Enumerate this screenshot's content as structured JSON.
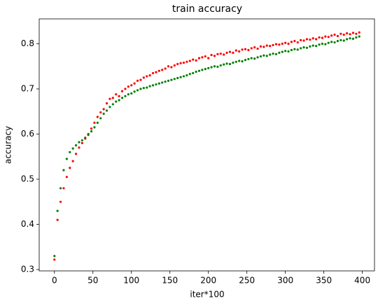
{
  "chart_data": {
    "type": "scatter",
    "title": "train accuracy",
    "x_label": "iter*100",
    "y_label": "accuracy",
    "x": [
      0,
      4,
      8,
      12,
      16,
      20,
      24,
      28,
      32,
      36,
      40,
      44,
      48,
      52,
      56,
      60,
      64,
      68,
      72,
      76,
      80,
      84,
      88,
      92,
      96,
      100,
      104,
      108,
      112,
      116,
      120,
      124,
      128,
      132,
      136,
      140,
      144,
      148,
      152,
      156,
      160,
      164,
      168,
      172,
      176,
      180,
      184,
      188,
      192,
      196,
      200,
      204,
      208,
      212,
      216,
      220,
      224,
      228,
      232,
      236,
      240,
      244,
      248,
      252,
      256,
      260,
      264,
      268,
      272,
      276,
      280,
      284,
      288,
      292,
      296,
      300,
      304,
      308,
      312,
      316,
      320,
      324,
      328,
      332,
      336,
      340,
      344,
      348,
      352,
      356,
      360,
      364,
      368,
      372,
      376,
      380,
      384,
      388,
      392,
      396
    ],
    "series": [
      {
        "color": "#ff0000",
        "values": [
          0.322,
          0.41,
          0.45,
          0.48,
          0.505,
          0.525,
          0.54,
          0.556,
          0.57,
          0.58,
          0.59,
          0.6,
          0.612,
          0.625,
          0.638,
          0.648,
          0.655,
          0.668,
          0.678,
          0.68,
          0.688,
          0.684,
          0.695,
          0.7,
          0.705,
          0.708,
          0.712,
          0.718,
          0.72,
          0.725,
          0.728,
          0.73,
          0.735,
          0.737,
          0.74,
          0.742,
          0.745,
          0.75,
          0.748,
          0.752,
          0.755,
          0.757,
          0.758,
          0.76,
          0.762,
          0.765,
          0.763,
          0.768,
          0.77,
          0.772,
          0.768,
          0.775,
          0.773,
          0.777,
          0.778,
          0.776,
          0.78,
          0.782,
          0.78,
          0.785,
          0.783,
          0.787,
          0.788,
          0.786,
          0.79,
          0.792,
          0.789,
          0.794,
          0.793,
          0.796,
          0.795,
          0.797,
          0.799,
          0.798,
          0.8,
          0.802,
          0.8,
          0.804,
          0.806,
          0.803,
          0.808,
          0.807,
          0.81,
          0.809,
          0.812,
          0.81,
          0.814,
          0.813,
          0.816,
          0.815,
          0.818,
          0.82,
          0.817,
          0.822,
          0.82,
          0.823,
          0.821,
          0.824,
          0.822,
          0.825
        ]
      },
      {
        "color": "#008000",
        "values": [
          0.33,
          0.43,
          0.48,
          0.52,
          0.545,
          0.56,
          0.568,
          0.575,
          0.582,
          0.586,
          0.592,
          0.598,
          0.606,
          0.615,
          0.625,
          0.635,
          0.645,
          0.652,
          0.66,
          0.666,
          0.672,
          0.675,
          0.68,
          0.684,
          0.688,
          0.69,
          0.694,
          0.697,
          0.7,
          0.702,
          0.703,
          0.706,
          0.708,
          0.71,
          0.712,
          0.714,
          0.716,
          0.718,
          0.72,
          0.722,
          0.724,
          0.726,
          0.728,
          0.73,
          0.733,
          0.735,
          0.738,
          0.74,
          0.742,
          0.744,
          0.746,
          0.748,
          0.75,
          0.749,
          0.752,
          0.754,
          0.756,
          0.755,
          0.758,
          0.76,
          0.762,
          0.761,
          0.764,
          0.766,
          0.768,
          0.767,
          0.77,
          0.772,
          0.774,
          0.773,
          0.776,
          0.778,
          0.777,
          0.78,
          0.782,
          0.784,
          0.783,
          0.786,
          0.788,
          0.787,
          0.79,
          0.792,
          0.791,
          0.794,
          0.796,
          0.795,
          0.798,
          0.8,
          0.799,
          0.802,
          0.804,
          0.803,
          0.806,
          0.808,
          0.807,
          0.81,
          0.812,
          0.811,
          0.814,
          0.816
        ]
      }
    ],
    "xlim": [
      -19.8,
      415.8
    ],
    "xticks": [
      0,
      50,
      100,
      150,
      200,
      250,
      300,
      350,
      400
    ],
    "ylim": [
      0.297,
      0.855
    ],
    "yticks": [
      0.3,
      0.4,
      0.5,
      0.6,
      0.7,
      0.8
    ],
    "grid": false
  }
}
